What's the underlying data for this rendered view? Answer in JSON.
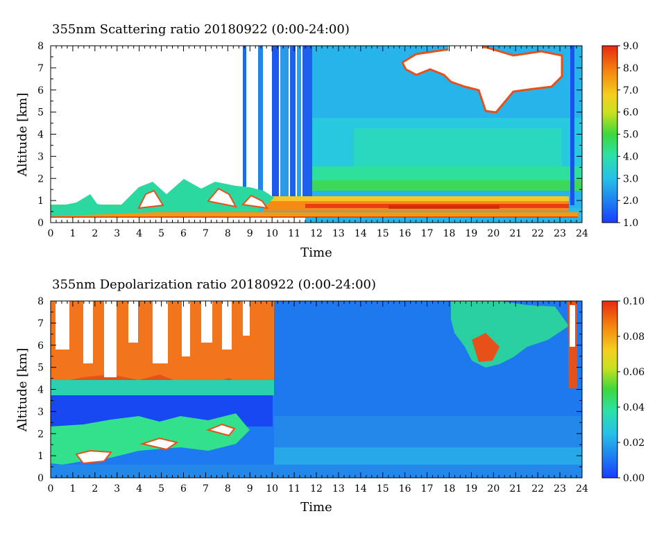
{
  "chart_data": [
    {
      "type": "heatmap",
      "title": "355nm Scattering ratio  20180922 (0:00-24:00)",
      "xlabel": "Time",
      "ylabel": "Altitude [km]",
      "xlim": [
        0,
        24
      ],
      "ylim": [
        0,
        8
      ],
      "x_ticks": [
        "0",
        "1",
        "2",
        "3",
        "4",
        "5",
        "6",
        "7",
        "8",
        "9",
        "10",
        "11",
        "12",
        "13",
        "14",
        "15",
        "16",
        "17",
        "18",
        "19",
        "20",
        "21",
        "22",
        "23",
        "24"
      ],
      "y_ticks": [
        "0",
        "1",
        "2",
        "3",
        "4",
        "5",
        "6",
        "7",
        "8"
      ],
      "colorbar": {
        "range": [
          1.0,
          9.0
        ],
        "ticks": [
          "1.0",
          "2.0",
          "3.0",
          "4.0",
          "5.0",
          "6.0",
          "7.0",
          "8.0",
          "9.0"
        ]
      }
    },
    {
      "type": "heatmap",
      "title": "355nm Depolarization ratio  20180922 (0:00-24:00)",
      "xlabel": "Time",
      "ylabel": "Altitude [km]",
      "xlim": [
        0,
        24
      ],
      "ylim": [
        0,
        8
      ],
      "x_ticks": [
        "0",
        "1",
        "2",
        "3",
        "4",
        "5",
        "6",
        "7",
        "8",
        "9",
        "10",
        "11",
        "12",
        "13",
        "14",
        "15",
        "16",
        "17",
        "18",
        "19",
        "20",
        "21",
        "22",
        "23",
        "24"
      ],
      "y_ticks": [
        "0",
        "1",
        "2",
        "3",
        "4",
        "5",
        "6",
        "7",
        "8"
      ],
      "colorbar": {
        "range": [
          0.0,
          0.1
        ],
        "ticks": [
          "0.00",
          "0.02",
          "0.04",
          "0.06",
          "0.08",
          "0.10"
        ]
      }
    }
  ]
}
